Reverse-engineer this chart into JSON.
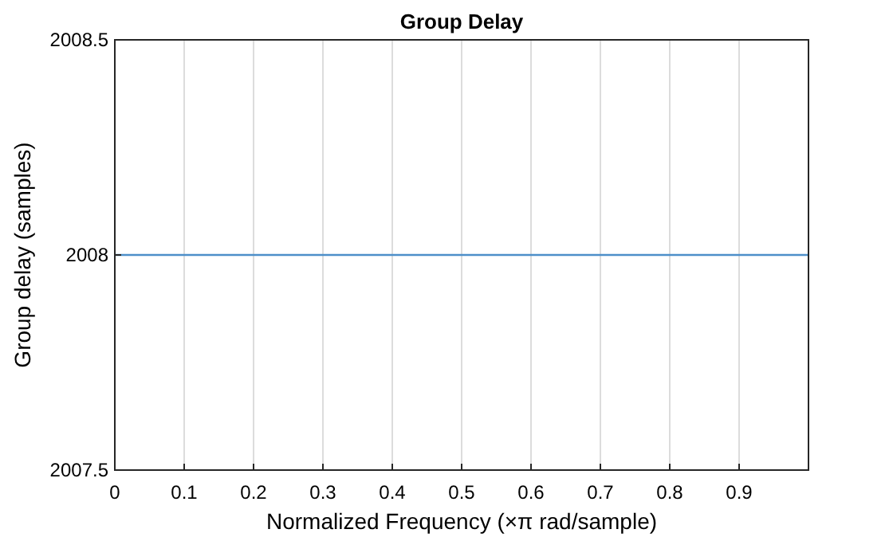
{
  "chart_data": {
    "type": "line",
    "title": "Group Delay",
    "xlabel": "Normalized Frequency  (×π rad/sample)",
    "ylabel": "Group delay (samples)",
    "x": [
      0,
      1
    ],
    "series": [
      {
        "color": "#4d8fc9",
        "values": [
          2008,
          2008
        ]
      }
    ],
    "xlim": [
      0,
      1
    ],
    "xticks": [
      0,
      0.1,
      0.2,
      0.3,
      0.4,
      0.5,
      0.6,
      0.7,
      0.8,
      0.9
    ],
    "ylim": [
      2007.5,
      2008.5
    ],
    "yticks": [
      2007.5,
      2008,
      2008.5
    ],
    "grid": "x"
  }
}
